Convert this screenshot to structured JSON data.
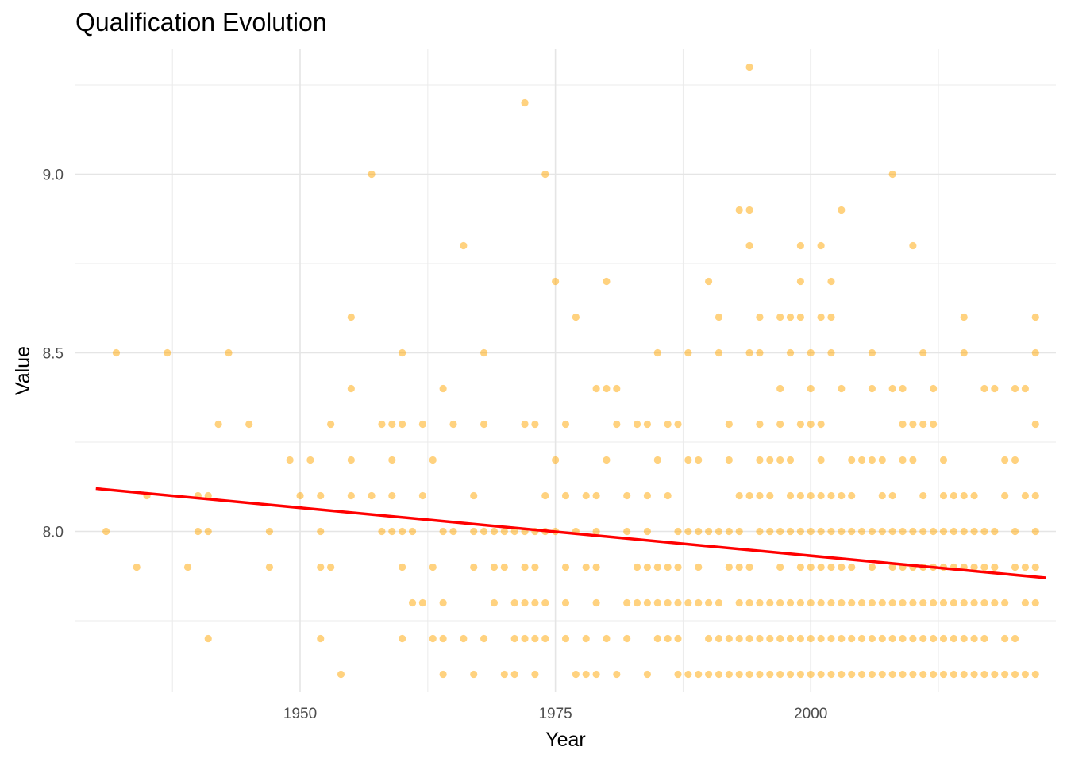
{
  "chart_data": {
    "type": "scatter",
    "title": "Qualification Evolution",
    "xlabel": "Year",
    "ylabel": "Value",
    "xlim": [
      1928,
      2024
    ],
    "ylim": [
      7.55,
      9.35
    ],
    "x_ticks": [
      1950,
      1975,
      2000
    ],
    "y_ticks": [
      8.0,
      8.5,
      9.0
    ],
    "x_minor_ticks": [
      1937.5,
      1962.5,
      1987.5,
      2012.5
    ],
    "y_minor_ticks": [
      7.75,
      8.25,
      8.75,
      9.25
    ],
    "grid": true,
    "legend": "none",
    "point_color": "#FFA500",
    "point_opacity": 0.5,
    "trend_color": "#FF0000",
    "trend_line": {
      "x": [
        1930,
        2023
      ],
      "y": [
        8.12,
        7.87
      ]
    },
    "points": [
      [
        1931,
        8.0
      ],
      [
        1932,
        8.5
      ],
      [
        1934,
        7.9
      ],
      [
        1935,
        8.1
      ],
      [
        1937,
        8.5
      ],
      [
        1939,
        7.9
      ],
      [
        1940,
        8.0
      ],
      [
        1940,
        8.1
      ],
      [
        1941,
        8.0
      ],
      [
        1941,
        8.1
      ],
      [
        1941,
        7.7
      ],
      [
        1943,
        8.5
      ],
      [
        1942,
        8.3
      ],
      [
        1945,
        8.3
      ],
      [
        1947,
        8.0
      ],
      [
        1947,
        7.9
      ],
      [
        1949,
        8.2
      ],
      [
        1950,
        8.1
      ],
      [
        1951,
        8.2
      ],
      [
        1952,
        8.1
      ],
      [
        1952,
        8.0
      ],
      [
        1952,
        7.9
      ],
      [
        1952,
        7.7
      ],
      [
        1953,
        8.3
      ],
      [
        1953,
        7.9
      ],
      [
        1954,
        7.6
      ],
      [
        1955,
        8.6
      ],
      [
        1955,
        8.4
      ],
      [
        1955,
        8.2
      ],
      [
        1955,
        8.1
      ],
      [
        1957,
        9.0
      ],
      [
        1957,
        8.1
      ],
      [
        1958,
        8.3
      ],
      [
        1958,
        8.0
      ],
      [
        1959,
        8.3
      ],
      [
        1959,
        8.2
      ],
      [
        1959,
        8.1
      ],
      [
        1959,
        8.0
      ],
      [
        1960,
        8.5
      ],
      [
        1960,
        8.3
      ],
      [
        1960,
        8.0
      ],
      [
        1960,
        7.9
      ],
      [
        1960,
        7.7
      ],
      [
        1961,
        8.0
      ],
      [
        1961,
        7.8
      ],
      [
        1962,
        8.3
      ],
      [
        1962,
        8.1
      ],
      [
        1962,
        7.8
      ],
      [
        1963,
        8.2
      ],
      [
        1963,
        7.9
      ],
      [
        1963,
        7.7
      ],
      [
        1964,
        8.4
      ],
      [
        1964,
        8.0
      ],
      [
        1964,
        7.8
      ],
      [
        1964,
        7.7
      ],
      [
        1964,
        7.6
      ],
      [
        1965,
        8.3
      ],
      [
        1965,
        8.0
      ],
      [
        1966,
        8.8
      ],
      [
        1966,
        7.7
      ],
      [
        1967,
        8.1
      ],
      [
        1967,
        8.0
      ],
      [
        1967,
        7.9
      ],
      [
        1967,
        7.6
      ],
      [
        1968,
        8.5
      ],
      [
        1968,
        8.3
      ],
      [
        1968,
        8.0
      ],
      [
        1968,
        7.7
      ],
      [
        1969,
        8.0
      ],
      [
        1969,
        7.9
      ],
      [
        1969,
        7.8
      ],
      [
        1970,
        8.0
      ],
      [
        1970,
        7.9
      ],
      [
        1970,
        7.6
      ],
      [
        1971,
        8.0
      ],
      [
        1971,
        7.8
      ],
      [
        1971,
        7.7
      ],
      [
        1971,
        7.6
      ],
      [
        1972,
        9.2
      ],
      [
        1972,
        8.3
      ],
      [
        1972,
        8.0
      ],
      [
        1972,
        7.9
      ],
      [
        1972,
        7.8
      ],
      [
        1972,
        7.7
      ],
      [
        1973,
        8.3
      ],
      [
        1973,
        8.0
      ],
      [
        1973,
        7.9
      ],
      [
        1973,
        7.8
      ],
      [
        1973,
        7.7
      ],
      [
        1973,
        7.6
      ],
      [
        1974,
        9.0
      ],
      [
        1974,
        8.1
      ],
      [
        1974,
        8.0
      ],
      [
        1974,
        7.8
      ],
      [
        1974,
        7.7
      ],
      [
        1975,
        8.7
      ],
      [
        1975,
        8.2
      ],
      [
        1975,
        8.0
      ],
      [
        1976,
        8.3
      ],
      [
        1976,
        8.1
      ],
      [
        1976,
        7.9
      ],
      [
        1976,
        7.8
      ],
      [
        1976,
        7.7
      ],
      [
        1977,
        8.6
      ],
      [
        1977,
        8.0
      ],
      [
        1977,
        7.6
      ],
      [
        1978,
        8.1
      ],
      [
        1978,
        7.9
      ],
      [
        1978,
        7.7
      ],
      [
        1978,
        7.6
      ],
      [
        1979,
        8.4
      ],
      [
        1979,
        8.1
      ],
      [
        1979,
        8.0
      ],
      [
        1979,
        7.9
      ],
      [
        1979,
        7.8
      ],
      [
        1979,
        7.6
      ],
      [
        1980,
        8.7
      ],
      [
        1980,
        8.4
      ],
      [
        1980,
        8.2
      ],
      [
        1980,
        7.7
      ],
      [
        1981,
        8.4
      ],
      [
        1981,
        8.3
      ],
      [
        1981,
        7.6
      ],
      [
        1982,
        8.1
      ],
      [
        1982,
        8.0
      ],
      [
        1982,
        7.8
      ],
      [
        1982,
        7.7
      ],
      [
        1983,
        8.3
      ],
      [
        1983,
        7.9
      ],
      [
        1983,
        7.8
      ],
      [
        1984,
        8.3
      ],
      [
        1984,
        8.1
      ],
      [
        1984,
        8.0
      ],
      [
        1984,
        7.9
      ],
      [
        1984,
        7.8
      ],
      [
        1984,
        7.6
      ],
      [
        1985,
        8.5
      ],
      [
        1985,
        8.2
      ],
      [
        1985,
        7.9
      ],
      [
        1985,
        7.8
      ],
      [
        1985,
        7.7
      ],
      [
        1986,
        8.3
      ],
      [
        1986,
        8.1
      ],
      [
        1986,
        7.9
      ],
      [
        1986,
        7.8
      ],
      [
        1986,
        7.7
      ],
      [
        1987,
        8.3
      ],
      [
        1987,
        8.0
      ],
      [
        1987,
        7.9
      ],
      [
        1987,
        7.8
      ],
      [
        1987,
        7.7
      ],
      [
        1987,
        7.6
      ],
      [
        1988,
        8.5
      ],
      [
        1988,
        8.2
      ],
      [
        1988,
        8.0
      ],
      [
        1988,
        7.8
      ],
      [
        1988,
        7.6
      ],
      [
        1989,
        8.2
      ],
      [
        1989,
        8.0
      ],
      [
        1989,
        7.9
      ],
      [
        1989,
        7.8
      ],
      [
        1989,
        7.6
      ],
      [
        1990,
        8.7
      ],
      [
        1990,
        8.0
      ],
      [
        1990,
        7.8
      ],
      [
        1990,
        7.7
      ],
      [
        1990,
        7.6
      ],
      [
        1991,
        8.6
      ],
      [
        1991,
        8.5
      ],
      [
        1991,
        8.0
      ],
      [
        1991,
        7.8
      ],
      [
        1991,
        7.7
      ],
      [
        1991,
        7.6
      ],
      [
        1992,
        8.3
      ],
      [
        1992,
        8.2
      ],
      [
        1992,
        8.0
      ],
      [
        1992,
        7.9
      ],
      [
        1992,
        7.7
      ],
      [
        1992,
        7.6
      ],
      [
        1993,
        8.9
      ],
      [
        1993,
        8.1
      ],
      [
        1993,
        8.0
      ],
      [
        1993,
        7.9
      ],
      [
        1993,
        7.8
      ],
      [
        1993,
        7.7
      ],
      [
        1993,
        7.6
      ],
      [
        1994,
        9.3
      ],
      [
        1994,
        8.9
      ],
      [
        1994,
        8.8
      ],
      [
        1994,
        8.5
      ],
      [
        1994,
        8.1
      ],
      [
        1994,
        7.9
      ],
      [
        1994,
        7.8
      ],
      [
        1994,
        7.7
      ],
      [
        1994,
        7.6
      ],
      [
        1995,
        8.6
      ],
      [
        1995,
        8.5
      ],
      [
        1995,
        8.3
      ],
      [
        1995,
        8.2
      ],
      [
        1995,
        8.1
      ],
      [
        1995,
        8.0
      ],
      [
        1995,
        7.8
      ],
      [
        1995,
        7.7
      ],
      [
        1995,
        7.6
      ],
      [
        1996,
        8.2
      ],
      [
        1996,
        8.1
      ],
      [
        1996,
        8.0
      ],
      [
        1996,
        7.8
      ],
      [
        1996,
        7.7
      ],
      [
        1996,
        7.6
      ],
      [
        1997,
        8.6
      ],
      [
        1997,
        8.4
      ],
      [
        1997,
        8.3
      ],
      [
        1997,
        8.2
      ],
      [
        1997,
        8.0
      ],
      [
        1997,
        7.9
      ],
      [
        1997,
        7.8
      ],
      [
        1997,
        7.7
      ],
      [
        1997,
        7.6
      ],
      [
        1998,
        8.6
      ],
      [
        1998,
        8.5
      ],
      [
        1998,
        8.2
      ],
      [
        1998,
        8.1
      ],
      [
        1998,
        8.0
      ],
      [
        1998,
        7.8
      ],
      [
        1998,
        7.7
      ],
      [
        1998,
        7.6
      ],
      [
        1999,
        8.8
      ],
      [
        1999,
        8.7
      ],
      [
        1999,
        8.6
      ],
      [
        1999,
        8.3
      ],
      [
        1999,
        8.1
      ],
      [
        1999,
        8.0
      ],
      [
        1999,
        7.9
      ],
      [
        1999,
        7.8
      ],
      [
        1999,
        7.7
      ],
      [
        1999,
        7.6
      ],
      [
        2000,
        8.5
      ],
      [
        2000,
        8.4
      ],
      [
        2000,
        8.3
      ],
      [
        2000,
        8.1
      ],
      [
        2000,
        8.0
      ],
      [
        2000,
        7.9
      ],
      [
        2000,
        7.8
      ],
      [
        2000,
        7.7
      ],
      [
        2000,
        7.6
      ],
      [
        2001,
        8.8
      ],
      [
        2001,
        8.6
      ],
      [
        2001,
        8.3
      ],
      [
        2001,
        8.2
      ],
      [
        2001,
        8.1
      ],
      [
        2001,
        8.0
      ],
      [
        2001,
        7.9
      ],
      [
        2001,
        7.8
      ],
      [
        2001,
        7.7
      ],
      [
        2001,
        7.6
      ],
      [
        2002,
        8.7
      ],
      [
        2002,
        8.6
      ],
      [
        2002,
        8.5
      ],
      [
        2002,
        8.1
      ],
      [
        2002,
        8.0
      ],
      [
        2002,
        7.9
      ],
      [
        2002,
        7.8
      ],
      [
        2002,
        7.7
      ],
      [
        2002,
        7.6
      ],
      [
        2003,
        8.9
      ],
      [
        2003,
        8.4
      ],
      [
        2003,
        8.1
      ],
      [
        2003,
        8.0
      ],
      [
        2003,
        7.9
      ],
      [
        2003,
        7.8
      ],
      [
        2003,
        7.7
      ],
      [
        2003,
        7.6
      ],
      [
        2004,
        8.2
      ],
      [
        2004,
        8.1
      ],
      [
        2004,
        8.0
      ],
      [
        2004,
        7.9
      ],
      [
        2004,
        7.8
      ],
      [
        2004,
        7.7
      ],
      [
        2004,
        7.6
      ],
      [
        2005,
        8.2
      ],
      [
        2005,
        8.0
      ],
      [
        2005,
        7.8
      ],
      [
        2005,
        7.7
      ],
      [
        2005,
        7.6
      ],
      [
        2006,
        8.5
      ],
      [
        2006,
        8.4
      ],
      [
        2006,
        8.2
      ],
      [
        2006,
        8.0
      ],
      [
        2006,
        7.9
      ],
      [
        2006,
        7.8
      ],
      [
        2006,
        7.7
      ],
      [
        2006,
        7.6
      ],
      [
        2007,
        8.2
      ],
      [
        2007,
        8.1
      ],
      [
        2007,
        8.0
      ],
      [
        2007,
        7.8
      ],
      [
        2007,
        7.7
      ],
      [
        2007,
        7.6
      ],
      [
        2008,
        9.0
      ],
      [
        2008,
        8.4
      ],
      [
        2008,
        8.1
      ],
      [
        2008,
        8.0
      ],
      [
        2008,
        7.9
      ],
      [
        2008,
        7.8
      ],
      [
        2008,
        7.7
      ],
      [
        2008,
        7.6
      ],
      [
        2009,
        8.4
      ],
      [
        2009,
        8.3
      ],
      [
        2009,
        8.2
      ],
      [
        2009,
        8.0
      ],
      [
        2009,
        7.9
      ],
      [
        2009,
        7.8
      ],
      [
        2009,
        7.7
      ],
      [
        2009,
        7.6
      ],
      [
        2010,
        8.8
      ],
      [
        2010,
        8.3
      ],
      [
        2010,
        8.2
      ],
      [
        2010,
        8.0
      ],
      [
        2010,
        7.9
      ],
      [
        2010,
        7.8
      ],
      [
        2010,
        7.7
      ],
      [
        2010,
        7.6
      ],
      [
        2011,
        8.5
      ],
      [
        2011,
        8.3
      ],
      [
        2011,
        8.1
      ],
      [
        2011,
        8.0
      ],
      [
        2011,
        7.9
      ],
      [
        2011,
        7.8
      ],
      [
        2011,
        7.7
      ],
      [
        2011,
        7.6
      ],
      [
        2012,
        8.4
      ],
      [
        2012,
        8.3
      ],
      [
        2012,
        8.0
      ],
      [
        2012,
        7.9
      ],
      [
        2012,
        7.8
      ],
      [
        2012,
        7.7
      ],
      [
        2012,
        7.6
      ],
      [
        2013,
        8.2
      ],
      [
        2013,
        8.1
      ],
      [
        2013,
        8.0
      ],
      [
        2013,
        7.9
      ],
      [
        2013,
        7.8
      ],
      [
        2013,
        7.7
      ],
      [
        2013,
        7.6
      ],
      [
        2014,
        8.1
      ],
      [
        2014,
        8.0
      ],
      [
        2014,
        7.9
      ],
      [
        2014,
        7.8
      ],
      [
        2014,
        7.7
      ],
      [
        2014,
        7.6
      ],
      [
        2015,
        8.6
      ],
      [
        2015,
        8.5
      ],
      [
        2015,
        8.1
      ],
      [
        2015,
        8.0
      ],
      [
        2015,
        7.9
      ],
      [
        2015,
        7.8
      ],
      [
        2015,
        7.7
      ],
      [
        2015,
        7.6
      ],
      [
        2016,
        8.1
      ],
      [
        2016,
        8.0
      ],
      [
        2016,
        7.9
      ],
      [
        2016,
        7.8
      ],
      [
        2016,
        7.7
      ],
      [
        2016,
        7.6
      ],
      [
        2017,
        8.4
      ],
      [
        2017,
        8.0
      ],
      [
        2017,
        7.9
      ],
      [
        2017,
        7.8
      ],
      [
        2017,
        7.7
      ],
      [
        2017,
        7.6
      ],
      [
        2018,
        8.4
      ],
      [
        2018,
        8.0
      ],
      [
        2018,
        7.9
      ],
      [
        2018,
        7.8
      ],
      [
        2018,
        7.6
      ],
      [
        2019,
        8.2
      ],
      [
        2019,
        8.1
      ],
      [
        2019,
        7.8
      ],
      [
        2019,
        7.7
      ],
      [
        2019,
        7.6
      ],
      [
        2020,
        8.4
      ],
      [
        2020,
        8.2
      ],
      [
        2020,
        8.0
      ],
      [
        2020,
        7.9
      ],
      [
        2020,
        7.7
      ],
      [
        2020,
        7.6
      ],
      [
        2021,
        8.4
      ],
      [
        2021,
        8.1
      ],
      [
        2021,
        7.9
      ],
      [
        2021,
        7.8
      ],
      [
        2021,
        7.6
      ],
      [
        2022,
        8.6
      ],
      [
        2022,
        8.5
      ],
      [
        2022,
        8.3
      ],
      [
        2022,
        8.1
      ],
      [
        2022,
        8.0
      ],
      [
        2022,
        7.9
      ],
      [
        2022,
        7.8
      ],
      [
        2022,
        7.6
      ]
    ]
  }
}
